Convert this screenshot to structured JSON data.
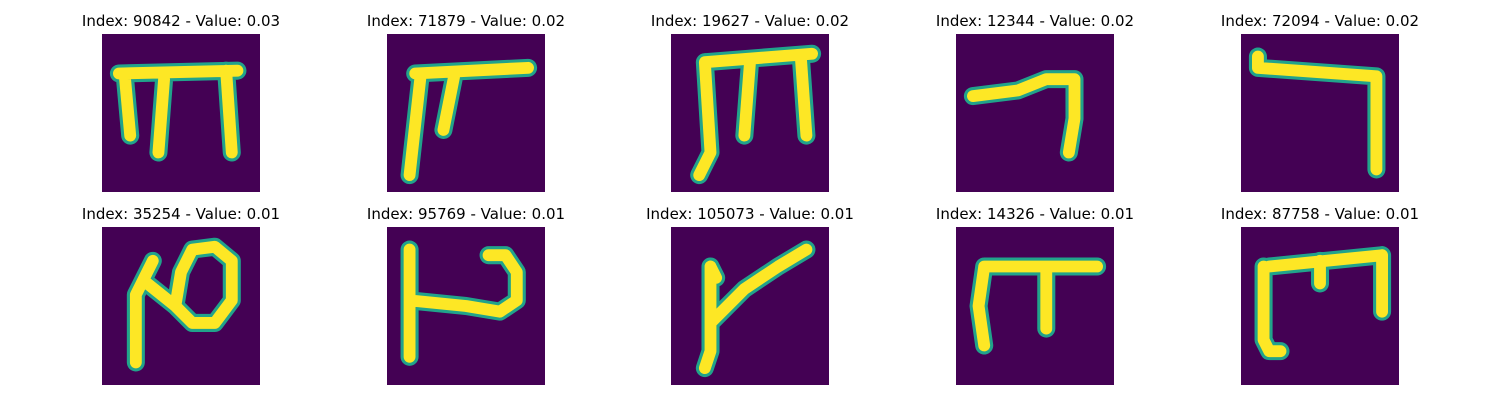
{
  "colors": {
    "background": "#440154",
    "stroke_edge": "#21a38b",
    "stroke_core": "#fde725"
  },
  "panels": [
    {
      "title": "Index: 90842 - Value: 0.03",
      "image": "handwritten-glyph"
    },
    {
      "title": "Index: 71879 - Value: 0.02",
      "image": "handwritten-glyph"
    },
    {
      "title": "Index: 19627 - Value: 0.02",
      "image": "handwritten-glyph"
    },
    {
      "title": "Index: 12344 - Value: 0.02",
      "image": "handwritten-glyph"
    },
    {
      "title": "Index: 72094 - Value: 0.02",
      "image": "handwritten-glyph"
    },
    {
      "title": "Index: 35254 - Value: 0.01",
      "image": "handwritten-glyph"
    },
    {
      "title": "Index: 95769 - Value: 0.01",
      "image": "handwritten-glyph"
    },
    {
      "title": "Index: 105073 - Value: 0.01",
      "image": "handwritten-glyph"
    },
    {
      "title": "Index: 14326 - Value: 0.01",
      "image": "handwritten-glyph"
    },
    {
      "title": "Index: 87758 - Value: 0.01",
      "image": "handwritten-glyph"
    }
  ]
}
